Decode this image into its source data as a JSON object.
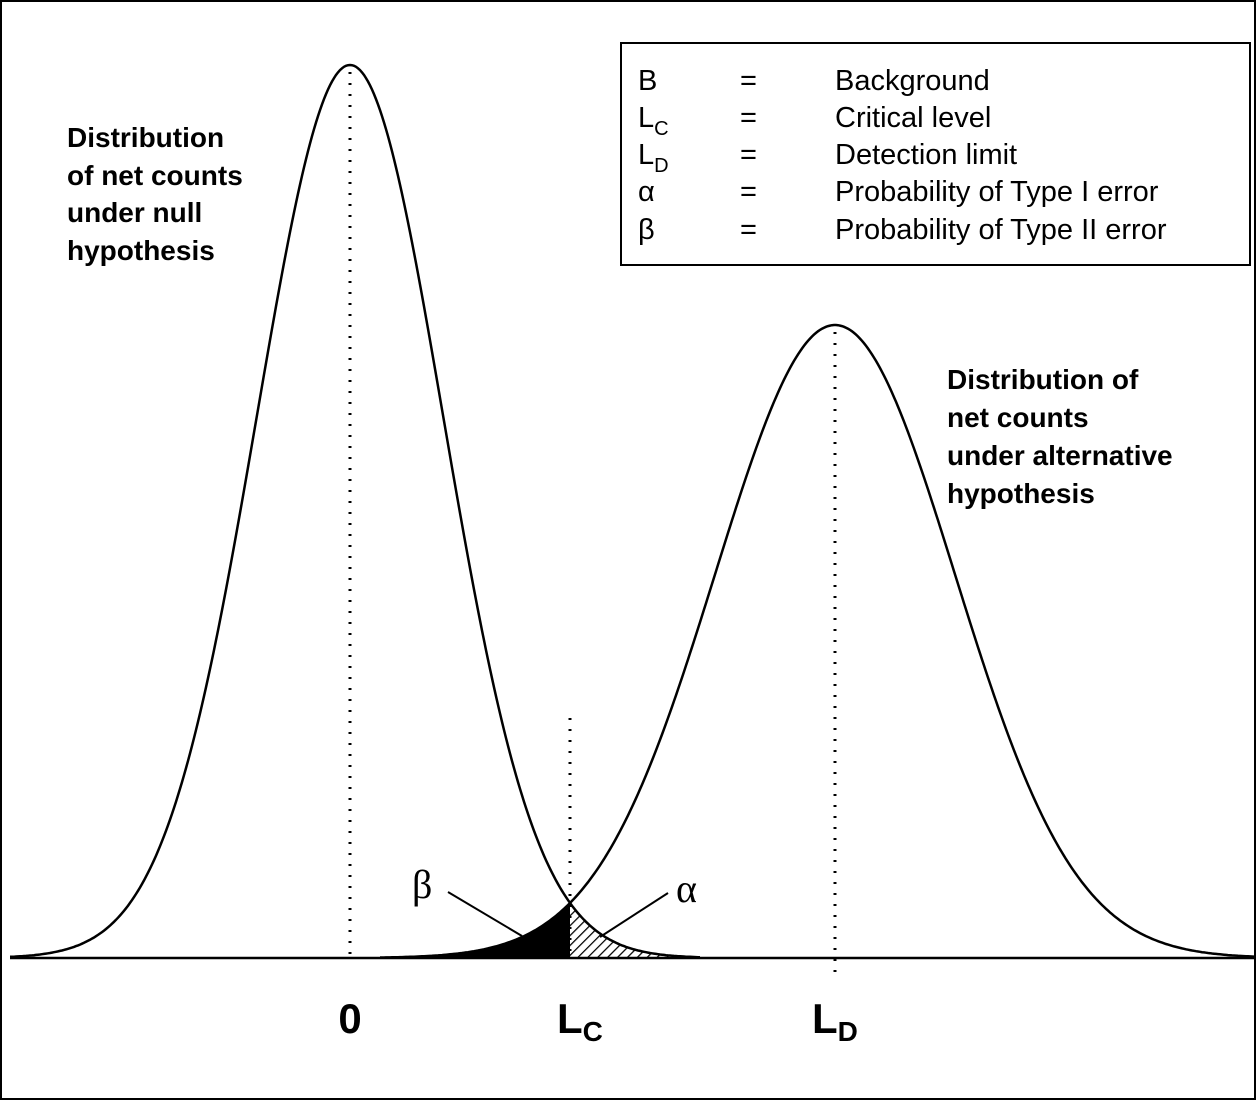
{
  "legend": [
    {
      "symbol": "B",
      "equals": "=",
      "meaning": "Background"
    },
    {
      "symbol": "L",
      "subscript": "C",
      "equals": "=",
      "meaning": "Critical level"
    },
    {
      "symbol": "L",
      "subscript": "D",
      "equals": "=",
      "meaning": "Detection limit"
    },
    {
      "symbol": "α",
      "equals": "=",
      "meaning": "Probability of Type I error"
    },
    {
      "symbol": "β",
      "equals": "=",
      "meaning": "Probability of Type II error"
    }
  ],
  "null_label": [
    "Distribution",
    "of net counts",
    "under null",
    "hypothesis"
  ],
  "alternative_label": [
    "Distribution of",
    "net counts",
    "under alternative",
    "hypothesis"
  ],
  "axis_labels": [
    {
      "text": "0"
    },
    {
      "text": "L",
      "subscript": "C"
    },
    {
      "text": "L",
      "subscript": "D"
    }
  ],
  "regions": {
    "beta": "β",
    "alpha": "α"
  }
}
